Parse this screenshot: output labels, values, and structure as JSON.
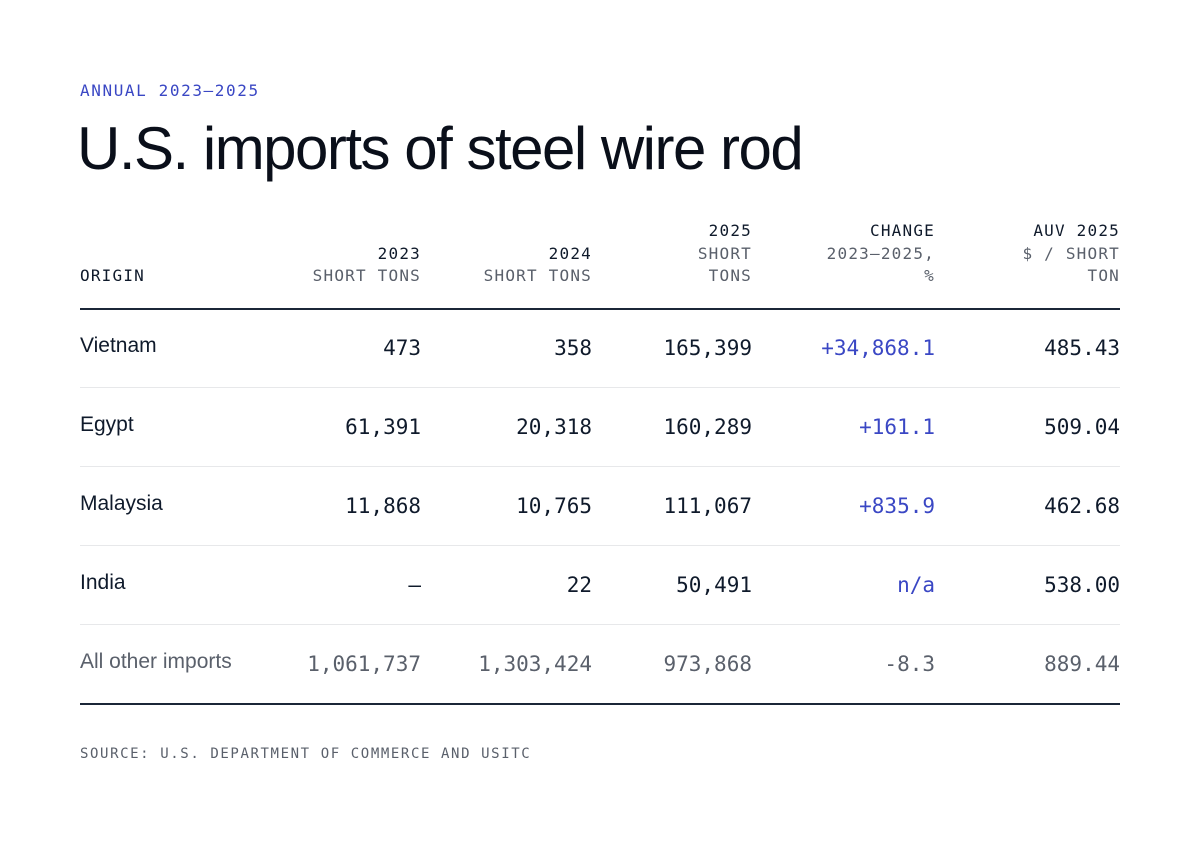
{
  "chart_data": {
    "type": "table",
    "eyebrow": "ANNUAL 2023–2025",
    "title": "U.S. imports of steel wire rod",
    "columns": [
      {
        "key": "origin",
        "line1": "",
        "line2": "",
        "line3": "ORIGIN"
      },
      {
        "key": "y2023",
        "line1": "",
        "line2": "2023",
        "line3": "SHORT TONS"
      },
      {
        "key": "y2024",
        "line1": "",
        "line2": "2024",
        "line3": "SHORT TONS"
      },
      {
        "key": "y2025",
        "line1": "2025",
        "line2": "SHORT",
        "line3": "TONS"
      },
      {
        "key": "change",
        "line1": "CHANGE",
        "line2": "2023–2025,",
        "line3": "%"
      },
      {
        "key": "auv",
        "line1": "AUV 2025",
        "line2": "$ / SHORT",
        "line3": "TON"
      }
    ],
    "rows": [
      {
        "origin": "Vietnam",
        "y2023": "473",
        "y2024": "358",
        "y2025": "165,399",
        "change": "+34,868.1",
        "auv": "485.43"
      },
      {
        "origin": "Egypt",
        "y2023": "61,391",
        "y2024": "20,318",
        "y2025": "160,289",
        "change": "+161.1",
        "auv": "509.04"
      },
      {
        "origin": "Malaysia",
        "y2023": "11,868",
        "y2024": "10,765",
        "y2025": "111,067",
        "change": "+835.9",
        "auv": "462.68"
      },
      {
        "origin": "India",
        "y2023": "–",
        "y2024": "22",
        "y2025": "50,491",
        "change": "n/a",
        "auv": "538.00"
      },
      {
        "origin": "All other imports",
        "y2023": "1,061,737",
        "y2024": "1,303,424",
        "y2025": "973,868",
        "change": "-8.3",
        "auv": "889.44"
      }
    ],
    "source": "SOURCE: U.S. DEPARTMENT OF COMMERCE AND USITC"
  },
  "colors": {
    "accent": "#3a47c4",
    "text": "#0f1a2b",
    "muted": "#5a606b",
    "rule": "#1b2638",
    "row_divider": "#e7e8ea"
  }
}
